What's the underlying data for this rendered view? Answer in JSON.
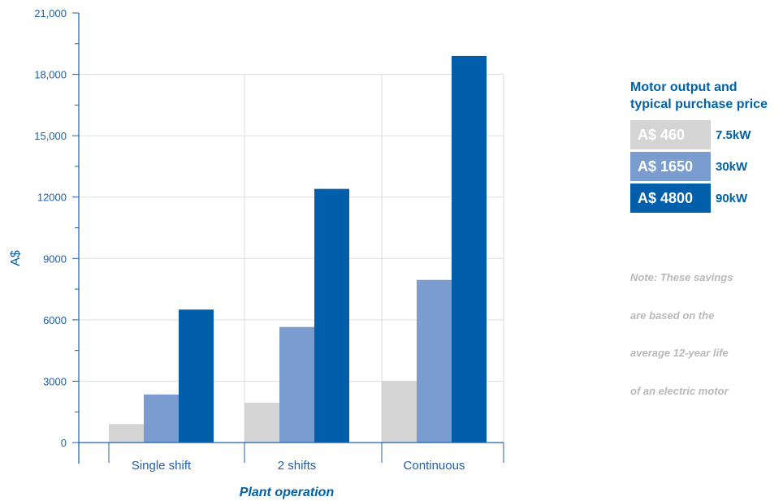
{
  "chart_data": {
    "type": "bar",
    "categories": [
      "Single shift",
      "2 shifts",
      "Continuous"
    ],
    "series": [
      {
        "name": "7.5kW",
        "values": [
          900,
          1950,
          3000
        ],
        "color": "#d4d4d4"
      },
      {
        "name": "30kW",
        "values": [
          2350,
          5650,
          7950
        ],
        "color": "#7b9ccf"
      },
      {
        "name": "90kW",
        "values": [
          6500,
          12400,
          18900
        ],
        "color": "#005eab"
      }
    ],
    "ylim": [
      0,
      21000
    ],
    "yticks": [
      {
        "value": 0,
        "label": "0"
      },
      {
        "value": 3000,
        "label": "3000"
      },
      {
        "value": 6000,
        "label": "6000"
      },
      {
        "value": 9000,
        "label": "9000"
      },
      {
        "value": 12000,
        "label": "12000"
      },
      {
        "value": 15000,
        "label": "15,000"
      },
      {
        "value": 18000,
        "label": "18,000"
      },
      {
        "value": 21000,
        "label": "21,000"
      }
    ],
    "ylabel": "A$",
    "xlabel": "Plant operation",
    "grid": true
  },
  "legend": {
    "title_line1": "Motor output and",
    "title_line2": "typical purchase price",
    "items": [
      {
        "price": "A$ 460",
        "output": "7.5kW",
        "color": "#d4d4d4"
      },
      {
        "price": "A$ 1650",
        "output": "30kW",
        "color": "#7b9ccf"
      },
      {
        "price": "A$ 4800",
        "output": "90kW",
        "color": "#005eab"
      }
    ]
  },
  "note": {
    "lines": [
      "Note: These savings",
      "are based on the",
      "average 12-year life",
      "of an electric motor"
    ]
  }
}
